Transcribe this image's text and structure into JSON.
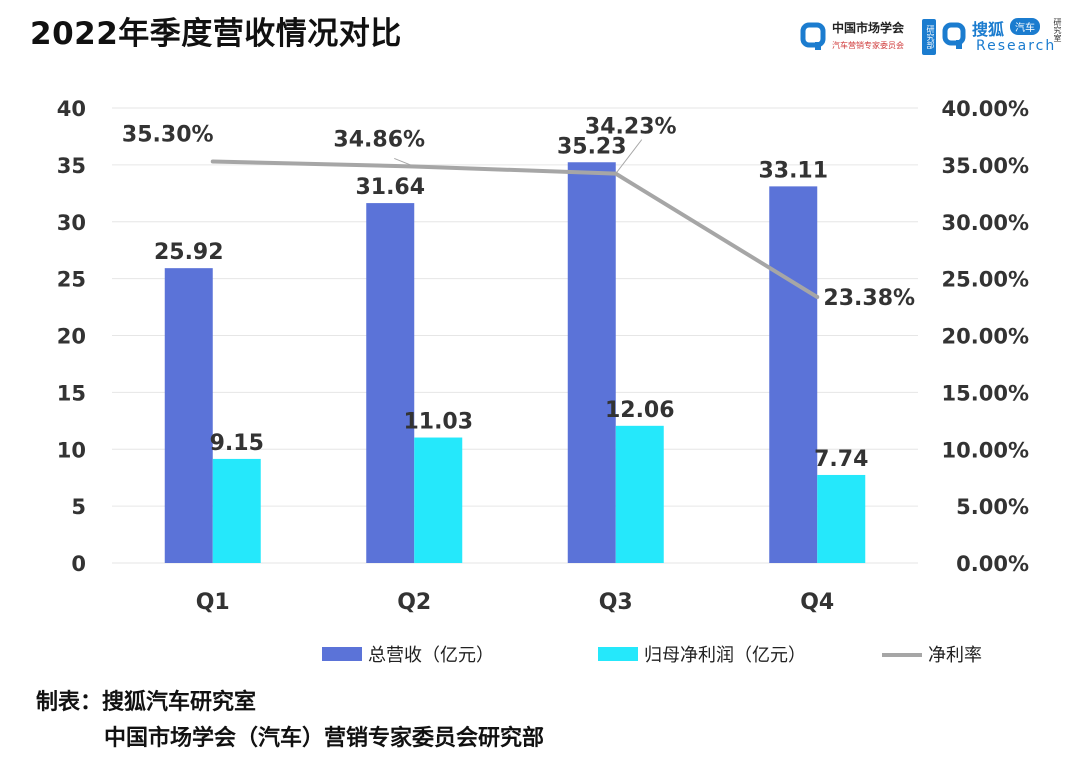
{
  "title": "2022年季度营收情况对比",
  "logo": {
    "org_name": "中国市场学会",
    "org_sub": "汽车营销专家委员会",
    "org_badge": "研究部",
    "brand_name": "搜狐",
    "brand_tag": "汽车",
    "brand_sub": "Research",
    "brand_side": "研究室"
  },
  "credits": {
    "line1": "制表：搜狐汽车研究室",
    "line2": "中国市场学会（汽车）营销专家委员会研究部"
  },
  "colors": {
    "revenue": "#5b73d8",
    "profit": "#25e8fb",
    "margin": "#a6a6a6",
    "grid": "#e6e6e6"
  },
  "chart_data": {
    "type": "bar",
    "title": "2022年季度营收情况对比",
    "categories": [
      "Q1",
      "Q2",
      "Q3",
      "Q4"
    ],
    "series": [
      {
        "name": "总营收（亿元）",
        "type": "bar",
        "axis": "left",
        "values": [
          25.92,
          31.64,
          35.23,
          33.11
        ],
        "labels": [
          "25.92",
          "31.64",
          "35.23",
          "33.11"
        ]
      },
      {
        "name": "归母净利润（亿元）",
        "type": "bar",
        "axis": "left",
        "values": [
          9.15,
          11.03,
          12.06,
          7.74
        ],
        "labels": [
          "9.15",
          "11.03",
          "12.06",
          "7.74"
        ]
      },
      {
        "name": "净利率",
        "type": "line",
        "axis": "right",
        "values": [
          35.3,
          34.86,
          34.23,
          23.38
        ],
        "labels": [
          "35.30%",
          "34.86%",
          "34.23%",
          "23.38%"
        ]
      }
    ],
    "y_left": {
      "min": 0,
      "max": 40,
      "ticks": [
        "0",
        "5",
        "10",
        "15",
        "20",
        "25",
        "30",
        "35",
        "40"
      ]
    },
    "y_right": {
      "min": 0,
      "max": 40,
      "ticks": [
        "0.00%",
        "5.00%",
        "10.00%",
        "15.00%",
        "20.00%",
        "25.00%",
        "30.00%",
        "35.00%",
        "40.00%"
      ]
    },
    "grid": true,
    "legend_position": "bottom"
  }
}
